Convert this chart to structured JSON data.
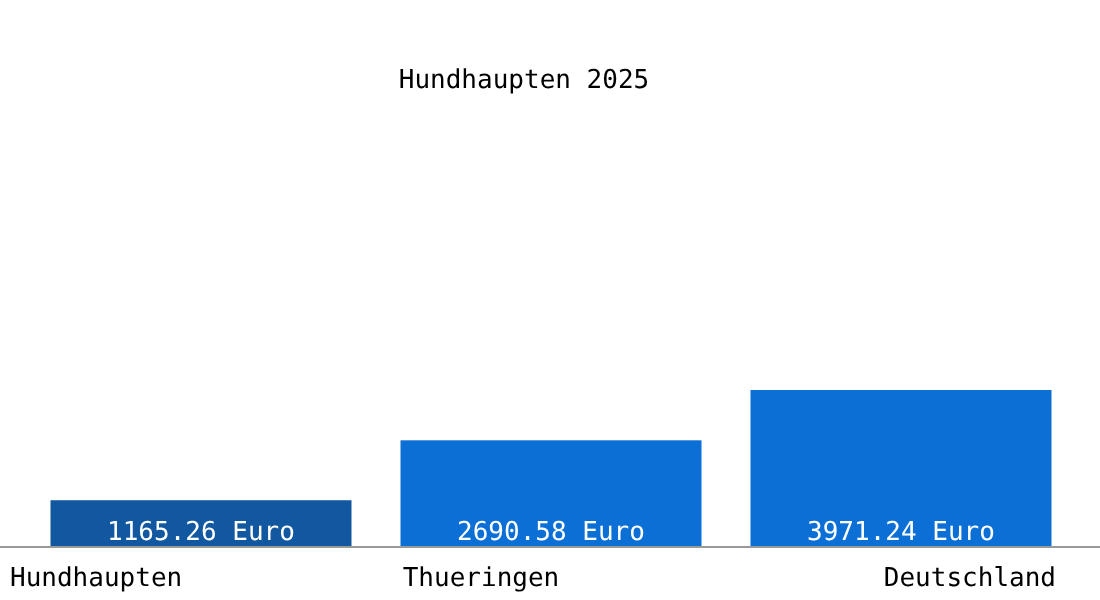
{
  "chart_data": {
    "type": "bar",
    "title": "Hundhaupten 2025",
    "categories": [
      "Hundhaupten",
      "Thueringen",
      "Deutschland"
    ],
    "values": [
      1165.26,
      2690.58,
      3971.24
    ],
    "colors": [
      "#1258a0",
      "#0c6fd6",
      "#0c6fd6"
    ],
    "value_labels": [
      "1165.26 Euro",
      "2690.58 Euro",
      "3971.24 Euro"
    ],
    "tick_labels": "x"
  }
}
